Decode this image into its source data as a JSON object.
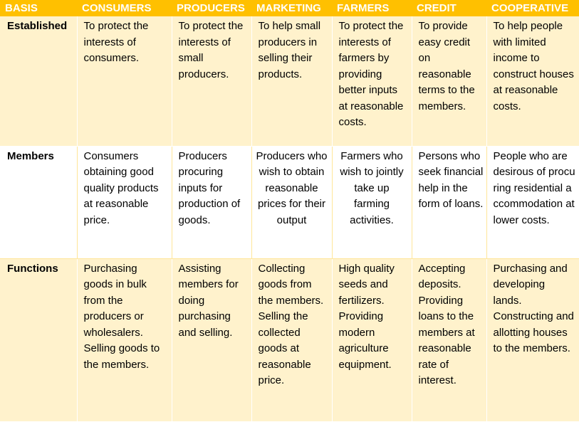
{
  "headers": [
    "BASIS",
    "CONSUMERS",
    "PRODUCERS",
    "MARKETING",
    "FARMERS",
    "CREDIT",
    "COOPERATIVE"
  ],
  "rows": [
    {
      "basis": "Established",
      "consumers": "To protect the interests of consumers.",
      "producers": "To protect the interests of small producers.",
      "marketing": "To help small producers in selling their products.",
      "farmers": "To protect the interests of farmers by providing better inputs at reasonable costs.",
      "credit": "To provide easy credit on reasonable terms to the members.",
      "cooperative": "To help people with limited income to construct houses at reasonable costs."
    },
    {
      "basis": "Members",
      "consumers": "Consumers obtaining good quality products at reasonable price.",
      "producers": "Producers procuring inputs for production of goods.",
      "marketing": "Producers who wish to obtain reasonable prices for their output",
      "farmers": "Farmers who wish to jointly take up farming activities.",
      "credit": "Persons who seek financial help in the form of loans.",
      "cooperative": "People who are desirous of procuring residential accommodation at lower costs."
    },
    {
      "basis": "Functions",
      "consumers": "Purchasing goods in bulk from the producers or wholesalers. Selling goods to the members.",
      "producers": "Assisting members for doing purchasing and selling.",
      "marketing": "Collecting goods from the members. Selling the collected goods at reasonable price.",
      "farmers": "High quality seeds and fertilizers. Providing modern agriculture equipment.",
      "credit": "Accepting deposits. Providing loans to the members at reasonable rate of interest.",
      "cooperative": "Purchasing and developing lands. Constructing and allotting houses to the members."
    }
  ],
  "colors": {
    "header_bg": "#ffc000",
    "header_text": "#ffffff",
    "band_fill": "#fff2cc",
    "border": "#ffe699"
  }
}
